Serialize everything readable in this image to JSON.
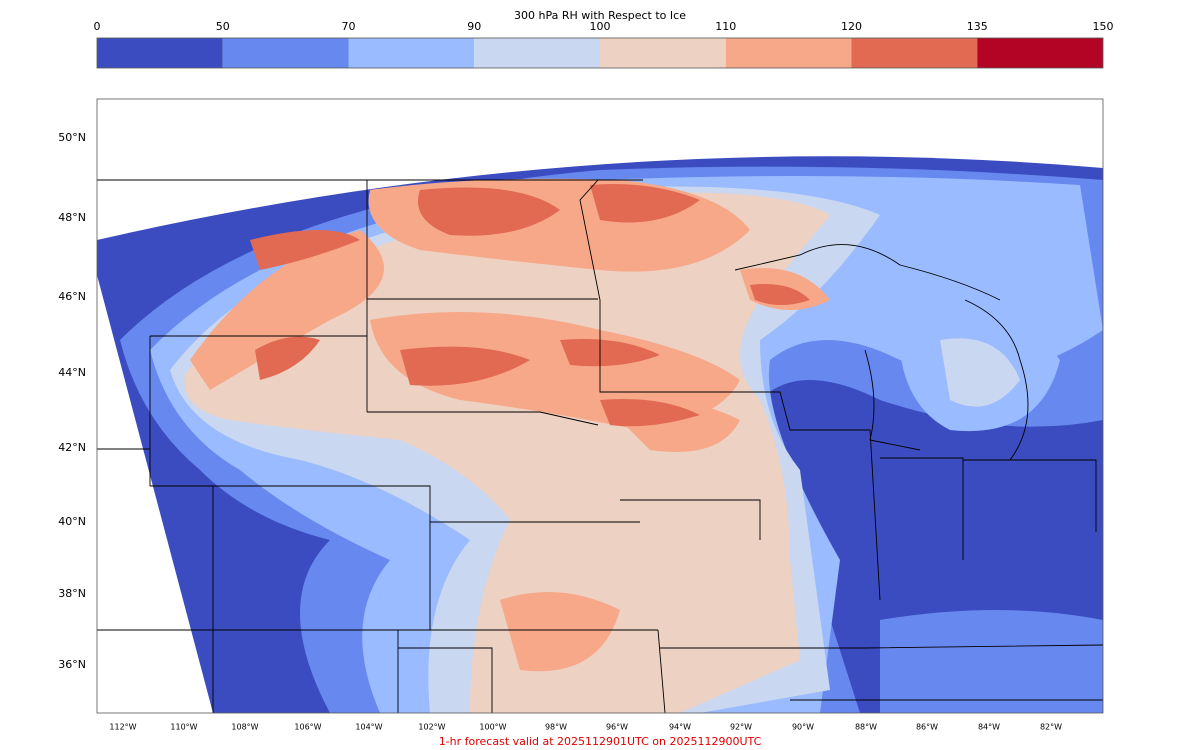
{
  "colorbar": {
    "title": "300 hPa RH with Respect to Ice",
    "ticks": [
      0,
      50,
      70,
      90,
      100,
      110,
      120,
      135,
      150
    ],
    "colors": [
      "#3b4cc0",
      "#6788ee",
      "#9abbff",
      "#c9d7f0",
      "#edd1c2",
      "#f7a889",
      "#e26952",
      "#b40426"
    ]
  },
  "map": {
    "lat_labels": [
      "50°N",
      "48°N",
      "46°N",
      "44°N",
      "42°N",
      "40°N",
      "38°N",
      "36°N"
    ],
    "lon_labels": [
      "112°W",
      "110°W",
      "108°W",
      "106°W",
      "104°W",
      "102°W",
      "100°W",
      "98°W",
      "96°W",
      "94°W",
      "92°W",
      "90°W",
      "88°W",
      "86°W",
      "84°W",
      "82°W"
    ]
  },
  "footer": "1-hr forecast valid at 2025112901UTC on 2025112900UTC"
}
